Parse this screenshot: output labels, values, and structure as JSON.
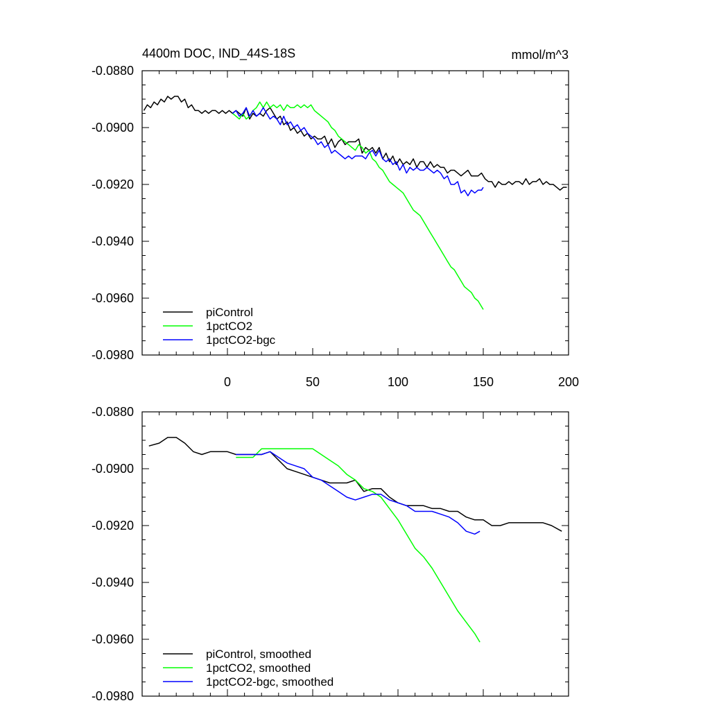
{
  "figure": {
    "title": "4400m DOC, IND_44S-18S",
    "units": "mmol/m^3"
  },
  "chart_data": [
    {
      "type": "line",
      "title": "4400m DOC, IND_44S-18S",
      "units": "mmol/m^3",
      "xlim": [
        -50,
        200
      ],
      "ylim": [
        -0.098,
        -0.088
      ],
      "x_ticks": [
        0,
        50,
        100,
        150,
        200
      ],
      "x_tick_labels": [
        "0",
        "50",
        "100",
        "150",
        "200"
      ],
      "y_ticks": [
        -0.088,
        -0.09,
        -0.092,
        -0.094,
        -0.096,
        -0.098
      ],
      "y_tick_labels": [
        "-0.0880",
        "-0.0900",
        "-0.0920",
        "-0.0940",
        "-0.0960",
        "-0.0980"
      ],
      "legend_position": "bottom-left",
      "series": [
        {
          "name": "piControl",
          "color": "#000000",
          "x": [
            -49,
            -47,
            -45,
            -43,
            -41,
            -39,
            -37,
            -35,
            -33,
            -31,
            -29,
            -27,
            -25,
            -23,
            -21,
            -19,
            -17,
            -15,
            -13,
            -11,
            -9,
            -7,
            -5,
            -3,
            -1,
            1,
            3,
            5,
            7,
            9,
            11,
            13,
            15,
            17,
            19,
            21,
            23,
            25,
            27,
            29,
            31,
            33,
            35,
            37,
            39,
            41,
            43,
            45,
            47,
            49,
            51,
            53,
            55,
            57,
            59,
            61,
            63,
            65,
            67,
            69,
            71,
            73,
            75,
            77,
            79,
            81,
            83,
            85,
            87,
            89,
            91,
            93,
            95,
            97,
            99,
            101,
            103,
            105,
            107,
            109,
            111,
            113,
            115,
            117,
            119,
            121,
            123,
            125,
            127,
            129,
            131,
            133,
            135,
            137,
            139,
            141,
            143,
            145,
            147,
            149,
            151,
            153,
            155,
            157,
            159,
            161,
            163,
            165,
            167,
            169,
            171,
            173,
            175,
            177,
            179,
            181,
            183,
            185,
            187,
            189,
            191,
            193,
            195,
            197,
            199
          ],
          "values": [
            -0.0894,
            -0.0892,
            -0.0893,
            -0.0891,
            -0.0892,
            -0.089,
            -0.0891,
            -0.0889,
            -0.089,
            -0.0889,
            -0.0889,
            -0.0891,
            -0.089,
            -0.0893,
            -0.0892,
            -0.0894,
            -0.0894,
            -0.0895,
            -0.0894,
            -0.0895,
            -0.0894,
            -0.0894,
            -0.0895,
            -0.0894,
            -0.0895,
            -0.0894,
            -0.0895,
            -0.0894,
            -0.0895,
            -0.0896,
            -0.0893,
            -0.0897,
            -0.0895,
            -0.0896,
            -0.0895,
            -0.0896,
            -0.0894,
            -0.0893,
            -0.0895,
            -0.0897,
            -0.0896,
            -0.0899,
            -0.0898,
            -0.0901,
            -0.09,
            -0.0902,
            -0.0901,
            -0.0903,
            -0.0902,
            -0.0904,
            -0.0903,
            -0.0904,
            -0.0904,
            -0.0903,
            -0.0906,
            -0.0904,
            -0.0907,
            -0.0905,
            -0.0904,
            -0.0906,
            -0.0905,
            -0.0905,
            -0.0905,
            -0.0904,
            -0.0909,
            -0.0907,
            -0.0908,
            -0.0907,
            -0.0909,
            -0.0907,
            -0.0911,
            -0.0909,
            -0.0912,
            -0.091,
            -0.0913,
            -0.0911,
            -0.0913,
            -0.0912,
            -0.0913,
            -0.0911,
            -0.0914,
            -0.0912,
            -0.0912,
            -0.0914,
            -0.0912,
            -0.0914,
            -0.0913,
            -0.0914,
            -0.0914,
            -0.0916,
            -0.0915,
            -0.0915,
            -0.0916,
            -0.0917,
            -0.0916,
            -0.0915,
            -0.0917,
            -0.0917,
            -0.0917,
            -0.0916,
            -0.0918,
            -0.0919,
            -0.0919,
            -0.0921,
            -0.0919,
            -0.092,
            -0.092,
            -0.0919,
            -0.092,
            -0.0919,
            -0.0919,
            -0.092,
            -0.0918,
            -0.092,
            -0.0919,
            -0.0919,
            -0.0918,
            -0.092,
            -0.0919,
            -0.092,
            -0.092,
            -0.0921,
            -0.0922,
            -0.0921,
            -0.0921
          ]
        },
        {
          "name": "1pctCO2",
          "color": "#00ff00",
          "x": [
            3,
            5,
            7,
            9,
            11,
            13,
            15,
            17,
            19,
            21,
            23,
            25,
            27,
            29,
            31,
            33,
            35,
            37,
            39,
            41,
            43,
            45,
            47,
            49,
            51,
            53,
            55,
            57,
            59,
            61,
            63,
            65,
            67,
            69,
            71,
            73,
            75,
            77,
            79,
            81,
            83,
            85,
            87,
            89,
            91,
            93,
            95,
            97,
            99,
            101,
            103,
            105,
            107,
            109,
            111,
            113,
            115,
            117,
            119,
            121,
            123,
            125,
            127,
            129,
            131,
            133,
            135,
            137,
            139,
            141,
            143,
            145,
            147,
            149,
            150
          ],
          "values": [
            -0.0895,
            -0.0896,
            -0.0897,
            -0.0895,
            -0.0897,
            -0.0896,
            -0.0894,
            -0.0893,
            -0.0891,
            -0.0893,
            -0.0891,
            -0.0893,
            -0.0892,
            -0.0893,
            -0.0892,
            -0.0894,
            -0.0892,
            -0.0893,
            -0.0893,
            -0.0892,
            -0.0893,
            -0.0892,
            -0.0893,
            -0.0892,
            -0.0894,
            -0.0895,
            -0.0896,
            -0.0897,
            -0.0898,
            -0.09,
            -0.0901,
            -0.0903,
            -0.0904,
            -0.0905,
            -0.0906,
            -0.0907,
            -0.0908,
            -0.0906,
            -0.0907,
            -0.0909,
            -0.0908,
            -0.0911,
            -0.0912,
            -0.0914,
            -0.0915,
            -0.0917,
            -0.0919,
            -0.092,
            -0.0921,
            -0.0922,
            -0.0923,
            -0.0925,
            -0.0927,
            -0.0929,
            -0.093,
            -0.0931,
            -0.0933,
            -0.0935,
            -0.0937,
            -0.0939,
            -0.0941,
            -0.0943,
            -0.0945,
            -0.0947,
            -0.0949,
            -0.095,
            -0.0952,
            -0.0954,
            -0.0956,
            -0.0957,
            -0.0958,
            -0.096,
            -0.0961,
            -0.0963,
            -0.0964
          ]
        },
        {
          "name": "1pctCO2-bgc",
          "color": "#0000ff",
          "x": [
            3,
            5,
            7,
            9,
            11,
            13,
            15,
            17,
            19,
            21,
            23,
            25,
            27,
            29,
            31,
            33,
            35,
            37,
            39,
            41,
            43,
            45,
            47,
            49,
            51,
            53,
            55,
            57,
            59,
            61,
            63,
            65,
            67,
            69,
            71,
            73,
            75,
            77,
            79,
            81,
            83,
            85,
            87,
            89,
            91,
            93,
            95,
            97,
            99,
            101,
            103,
            105,
            107,
            109,
            111,
            113,
            115,
            117,
            119,
            121,
            123,
            125,
            127,
            129,
            131,
            133,
            135,
            137,
            139,
            141,
            143,
            145,
            147,
            149,
            150
          ],
          "values": [
            -0.0895,
            -0.0894,
            -0.0896,
            -0.0895,
            -0.0893,
            -0.0896,
            -0.0894,
            -0.0896,
            -0.0895,
            -0.0893,
            -0.0895,
            -0.0897,
            -0.0896,
            -0.0897,
            -0.0899,
            -0.0896,
            -0.0899,
            -0.0898,
            -0.09,
            -0.0899,
            -0.0901,
            -0.09,
            -0.0902,
            -0.0903,
            -0.0904,
            -0.0906,
            -0.0905,
            -0.0907,
            -0.0906,
            -0.0909,
            -0.0908,
            -0.0909,
            -0.091,
            -0.0911,
            -0.091,
            -0.0911,
            -0.091,
            -0.091,
            -0.091,
            -0.0911,
            -0.0909,
            -0.0908,
            -0.091,
            -0.0908,
            -0.0911,
            -0.0912,
            -0.0911,
            -0.0913,
            -0.0912,
            -0.0915,
            -0.0913,
            -0.0916,
            -0.0914,
            -0.0915,
            -0.0914,
            -0.0915,
            -0.0915,
            -0.0914,
            -0.0915,
            -0.0916,
            -0.0915,
            -0.0916,
            -0.0918,
            -0.0917,
            -0.092,
            -0.092,
            -0.0919,
            -0.0923,
            -0.0922,
            -0.0924,
            -0.0922,
            -0.0923,
            -0.0922,
            -0.0922,
            -0.0921
          ]
        }
      ]
    },
    {
      "type": "line",
      "xlim": [
        -50,
        200
      ],
      "ylim": [
        -0.098,
        -0.088
      ],
      "y_ticks": [
        -0.088,
        -0.09,
        -0.092,
        -0.094,
        -0.096,
        -0.098
      ],
      "y_tick_labels": [
        "-0.0880",
        "-0.0900",
        "-0.0920",
        "-0.0940",
        "-0.0960",
        "-0.0980"
      ],
      "legend_position": "bottom-left",
      "series": [
        {
          "name": "piControl, smoothed",
          "color": "#000000",
          "x": [
            -46,
            -40,
            -35,
            -30,
            -25,
            -20,
            -15,
            -10,
            -5,
            0,
            5,
            10,
            15,
            20,
            25,
            30,
            35,
            40,
            45,
            50,
            55,
            60,
            65,
            70,
            75,
            80,
            85,
            90,
            95,
            100,
            105,
            110,
            115,
            120,
            125,
            130,
            135,
            140,
            145,
            150,
            155,
            160,
            165,
            170,
            175,
            180,
            185,
            190,
            196
          ],
          "values": [
            -0.0892,
            -0.0891,
            -0.0889,
            -0.0889,
            -0.0891,
            -0.0894,
            -0.0895,
            -0.0894,
            -0.0894,
            -0.0894,
            -0.0895,
            -0.0895,
            -0.0895,
            -0.0895,
            -0.0894,
            -0.0897,
            -0.09,
            -0.0901,
            -0.0902,
            -0.0903,
            -0.0904,
            -0.0905,
            -0.0905,
            -0.0905,
            -0.0904,
            -0.0908,
            -0.0907,
            -0.0907,
            -0.091,
            -0.0912,
            -0.0913,
            -0.0913,
            -0.0913,
            -0.0914,
            -0.0914,
            -0.0915,
            -0.0915,
            -0.0917,
            -0.0918,
            -0.0918,
            -0.092,
            -0.092,
            -0.0919,
            -0.0919,
            -0.0919,
            -0.0919,
            -0.0919,
            -0.092,
            -0.0922
          ]
        },
        {
          "name": "1pctCO2, smoothed",
          "color": "#00ff00",
          "x": [
            5,
            10,
            15,
            20,
            25,
            30,
            35,
            40,
            45,
            50,
            55,
            60,
            65,
            70,
            75,
            80,
            85,
            90,
            95,
            100,
            105,
            110,
            115,
            120,
            125,
            130,
            135,
            140,
            145,
            148
          ],
          "values": [
            -0.0896,
            -0.0896,
            -0.0896,
            -0.0893,
            -0.0893,
            -0.0893,
            -0.0893,
            -0.0893,
            -0.0893,
            -0.0893,
            -0.0895,
            -0.0897,
            -0.0899,
            -0.0902,
            -0.0904,
            -0.0907,
            -0.0908,
            -0.091,
            -0.0914,
            -0.0918,
            -0.0923,
            -0.0928,
            -0.0931,
            -0.0935,
            -0.094,
            -0.0945,
            -0.095,
            -0.0954,
            -0.0958,
            -0.0961
          ]
        },
        {
          "name": "1pctCO2-bgc, smoothed",
          "color": "#0000ff",
          "x": [
            5,
            10,
            15,
            20,
            25,
            30,
            35,
            40,
            45,
            50,
            55,
            60,
            65,
            70,
            75,
            80,
            85,
            90,
            95,
            100,
            105,
            110,
            115,
            120,
            125,
            130,
            135,
            140,
            145,
            148
          ],
          "values": [
            -0.0895,
            -0.0895,
            -0.0895,
            -0.0895,
            -0.0894,
            -0.0896,
            -0.0898,
            -0.0899,
            -0.09,
            -0.0903,
            -0.0904,
            -0.0906,
            -0.0908,
            -0.091,
            -0.0911,
            -0.091,
            -0.0909,
            -0.0909,
            -0.0911,
            -0.0912,
            -0.0913,
            -0.0915,
            -0.0915,
            -0.0915,
            -0.0916,
            -0.0917,
            -0.0919,
            -0.0922,
            -0.0923,
            -0.0922
          ]
        }
      ]
    }
  ]
}
